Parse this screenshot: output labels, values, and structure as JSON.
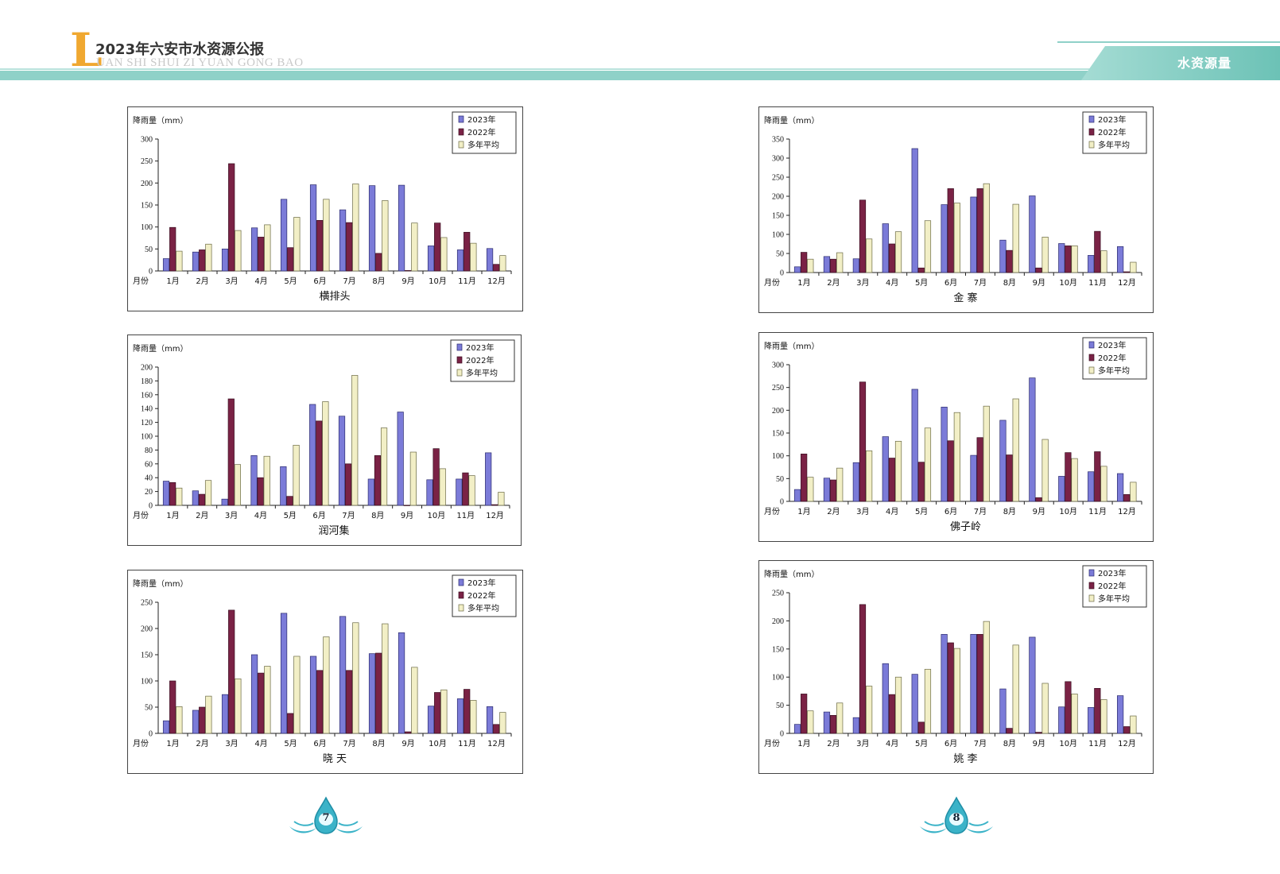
{
  "header": {
    "logo_letter": "L",
    "title": "2023年六安市水资源公报",
    "pinyin": "UAN SHI SHUI ZI YUAN GONG BAO",
    "section": "水资源量"
  },
  "pages": {
    "left": "7",
    "right": "8"
  },
  "colors": {
    "s2023": "#7b7bd8",
    "s2022": "#7a2245",
    "avg": "#f2efc6",
    "header": "#8fd1c8"
  },
  "chart_data": [
    {
      "type": "bar",
      "title": "横排头",
      "ylabel": "降雨量（mm）",
      "xlabel": "月份",
      "categories": [
        "1月",
        "2月",
        "3月",
        "4月",
        "5月",
        "6月",
        "7月",
        "8月",
        "9月",
        "10月",
        "11月",
        "12月"
      ],
      "ylim": [
        0,
        300
      ],
      "yticks": [
        0,
        50,
        100,
        150,
        200,
        250,
        300
      ],
      "legend": "top-right",
      "series": [
        {
          "name": "2023年",
          "values": [
            28,
            43,
            50,
            98,
            163,
            196,
            139,
            194,
            195,
            57,
            48,
            51
          ]
        },
        {
          "name": "2022年",
          "values": [
            99,
            48,
            244,
            77,
            53,
            115,
            110,
            40,
            1,
            109,
            88,
            15
          ]
        },
        {
          "name": "多年平均",
          "values": [
            45,
            61,
            92,
            105,
            122,
            163,
            198,
            160,
            109,
            76,
            63,
            35
          ]
        }
      ]
    },
    {
      "type": "bar",
      "title": "金 寨",
      "ylabel": "降雨量（mm）",
      "xlabel": "月份",
      "categories": [
        "1月",
        "2月",
        "3月",
        "4月",
        "5月",
        "6月",
        "7月",
        "8月",
        "9月",
        "10月",
        "11月",
        "12月"
      ],
      "ylim": [
        0,
        350
      ],
      "yticks": [
        0,
        50,
        100,
        150,
        200,
        250,
        300,
        350
      ],
      "legend": "top-right",
      "series": [
        {
          "name": "2023年",
          "values": [
            15,
            42,
            36,
            128,
            325,
            178,
            198,
            85,
            201,
            76,
            45,
            68
          ]
        },
        {
          "name": "2022年",
          "values": [
            53,
            35,
            190,
            75,
            12,
            220,
            220,
            58,
            12,
            70,
            108,
            2
          ]
        },
        {
          "name": "多年平均",
          "values": [
            35,
            52,
            88,
            107,
            136,
            182,
            233,
            179,
            93,
            70,
            57,
            27
          ]
        }
      ]
    },
    {
      "type": "bar",
      "title": "润河集",
      "ylabel": "降雨量（mm）",
      "xlabel": "月份",
      "categories": [
        "1月",
        "2月",
        "3月",
        "4月",
        "5月",
        "6月",
        "7月",
        "8月",
        "9月",
        "10月",
        "11月",
        "12月"
      ],
      "ylim": [
        0,
        200
      ],
      "yticks": [
        0,
        20,
        40,
        60,
        80,
        100,
        120,
        140,
        160,
        180,
        200
      ],
      "legend": "top-right",
      "series": [
        {
          "name": "2023年",
          "values": [
            35,
            21,
            9,
            72,
            56,
            146,
            129,
            38,
            135,
            37,
            38,
            76
          ]
        },
        {
          "name": "2022年",
          "values": [
            33,
            16,
            154,
            40,
            13,
            122,
            60,
            72,
            0,
            82,
            47,
            1
          ]
        },
        {
          "name": "多年平均",
          "values": [
            25,
            36,
            59,
            71,
            87,
            150,
            188,
            112,
            77,
            53,
            43,
            19
          ]
        }
      ]
    },
    {
      "type": "bar",
      "title": "佛子岭",
      "ylabel": "降雨量（mm）",
      "xlabel": "月份",
      "categories": [
        "1月",
        "2月",
        "3月",
        "4月",
        "5月",
        "6月",
        "7月",
        "8月",
        "9月",
        "10月",
        "11月",
        "12月"
      ],
      "ylim": [
        0,
        300
      ],
      "yticks": [
        0,
        50,
        100,
        150,
        200,
        250,
        300
      ],
      "legend": "top-right",
      "series": [
        {
          "name": "2023年",
          "values": [
            26,
            51,
            85,
            142,
            246,
            207,
            101,
            178,
            271,
            55,
            65,
            61
          ]
        },
        {
          "name": "2022年",
          "values": [
            104,
            47,
            262,
            95,
            86,
            133,
            140,
            102,
            8,
            107,
            109,
            15
          ]
        },
        {
          "name": "多年平均",
          "values": [
            53,
            73,
            111,
            132,
            161,
            195,
            209,
            225,
            136,
            94,
            77,
            42
          ]
        }
      ]
    },
    {
      "type": "bar",
      "title": "晓 天",
      "ylabel": "降雨量（mm）",
      "xlabel": "月份",
      "categories": [
        "1月",
        "2月",
        "3月",
        "4月",
        "5月",
        "6月",
        "7月",
        "8月",
        "9月",
        "10月",
        "11月",
        "12月"
      ],
      "ylim": [
        0,
        250
      ],
      "yticks": [
        0,
        50,
        100,
        150,
        200,
        250
      ],
      "legend": "top-right",
      "series": [
        {
          "name": "2023年",
          "values": [
            24,
            44,
            74,
            150,
            229,
            147,
            223,
            152,
            192,
            52,
            66,
            51
          ]
        },
        {
          "name": "2022年",
          "values": [
            100,
            50,
            235,
            115,
            38,
            120,
            120,
            153,
            3,
            78,
            84,
            17
          ]
        },
        {
          "name": "多年平均",
          "values": [
            51,
            71,
            104,
            128,
            147,
            184,
            211,
            209,
            126,
            83,
            63,
            40
          ]
        }
      ]
    },
    {
      "type": "bar",
      "title": "姚 李",
      "ylabel": "降雨量（mm）",
      "xlabel": "月份",
      "categories": [
        "1月",
        "2月",
        "3月",
        "4月",
        "5月",
        "6月",
        "7月",
        "8月",
        "9月",
        "10月",
        "11月",
        "12月"
      ],
      "ylim": [
        0,
        250
      ],
      "yticks": [
        0,
        50,
        100,
        150,
        200,
        250
      ],
      "legend": "top-right",
      "series": [
        {
          "name": "2023年",
          "values": [
            16,
            38,
            28,
            124,
            105,
            176,
            176,
            79,
            171,
            47,
            46,
            67
          ]
        },
        {
          "name": "2022年",
          "values": [
            70,
            32,
            229,
            69,
            20,
            161,
            176,
            9,
            2,
            92,
            80,
            12
          ]
        },
        {
          "name": "多年平均",
          "values": [
            40,
            54,
            84,
            100,
            114,
            151,
            199,
            157,
            89,
            70,
            60,
            31
          ]
        }
      ]
    }
  ]
}
